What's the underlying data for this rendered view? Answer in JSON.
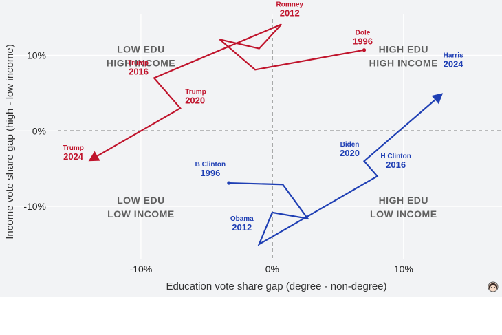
{
  "chart_data": {
    "type": "line",
    "xlabel": "Education vote share gap (degree - non-degree)",
    "ylabel": "Income vote share gap (high - low income)",
    "xlim": [
      -20,
      17.5
    ],
    "ylim": [
      -17,
      15.5
    ],
    "x_ticks": [
      {
        "value": -10,
        "label": "-10%"
      },
      {
        "value": 0,
        "label": "0%"
      },
      {
        "value": 10,
        "label": "10%"
      }
    ],
    "y_ticks": [
      {
        "value": 10,
        "label": "10%"
      },
      {
        "value": 0,
        "label": "0%"
      },
      {
        "value": -10,
        "label": "-10%"
      }
    ],
    "grid": true,
    "reference_lines": [
      {
        "axis": "x",
        "value": 0,
        "style": "dashed"
      },
      {
        "axis": "y",
        "value": 0,
        "style": "dashed"
      }
    ],
    "quadrant_labels": [
      {
        "id": "tl",
        "lines": [
          "LOW EDU",
          "HIGH INCOME"
        ],
        "x": -10,
        "y": 10
      },
      {
        "id": "tr",
        "lines": [
          "HIGH EDU",
          "HIGH INCOME"
        ],
        "x": 10,
        "y": 10
      },
      {
        "id": "bl",
        "lines": [
          "LOW EDU",
          "LOW INCOME"
        ],
        "x": -10,
        "y": -10
      },
      {
        "id": "br",
        "lines": [
          "HIGH EDU",
          "LOW INCOME"
        ],
        "x": 10,
        "y": -10
      }
    ],
    "series": [
      {
        "id": "republican",
        "color": "#c0142c",
        "path": [
          {
            "x": 7,
            "y": 10.7
          },
          {
            "x": -1.3,
            "y": 8.1
          },
          {
            "x": -4,
            "y": 12.1
          },
          {
            "x": -1,
            "y": 10.9
          },
          {
            "x": 0.7,
            "y": 14.1
          },
          {
            "x": -9,
            "y": 7
          },
          {
            "x": -7,
            "y": 3
          },
          {
            "x": -14,
            "y": -4
          }
        ],
        "labeled_points": [
          {
            "name": "Dole",
            "year": "1996",
            "x": 7,
            "y": 10.7
          },
          {
            "name": "Romney",
            "year": "2012",
            "x": 0.7,
            "y": 14.1
          },
          {
            "name": "Trump",
            "year": "2016",
            "x": -9,
            "y": 7
          },
          {
            "name": "Trump",
            "year": "2020",
            "x": -7,
            "y": 3
          },
          {
            "name": "Trump",
            "year": "2024",
            "x": -14,
            "y": -4
          }
        ]
      },
      {
        "id": "democratic",
        "color": "#1f3fb4",
        "path": [
          {
            "x": -3.3,
            "y": -6.9
          },
          {
            "x": 0.8,
            "y": -7.1
          },
          {
            "x": 2.7,
            "y": -11.6
          },
          {
            "x": 0,
            "y": -10.8
          },
          {
            "x": -1,
            "y": -15
          },
          {
            "x": 8,
            "y": -6
          },
          {
            "x": 7,
            "y": -4
          },
          {
            "x": 13,
            "y": 5
          }
        ],
        "labeled_points": [
          {
            "name": "B Clinton",
            "year": "1996",
            "x": -3.3,
            "y": -6.9
          },
          {
            "name": "Obama",
            "year": "2012",
            "x": -1,
            "y": -15
          },
          {
            "name": "H Clinton",
            "year": "2016",
            "x": 8,
            "y": -6
          },
          {
            "name": "Biden",
            "year": "2020",
            "x": 7,
            "y": -4
          },
          {
            "name": "Harris",
            "year": "2024",
            "x": 13,
            "y": 5
          }
        ]
      }
    ]
  },
  "badge": {
    "icon": "avatar-icon"
  }
}
